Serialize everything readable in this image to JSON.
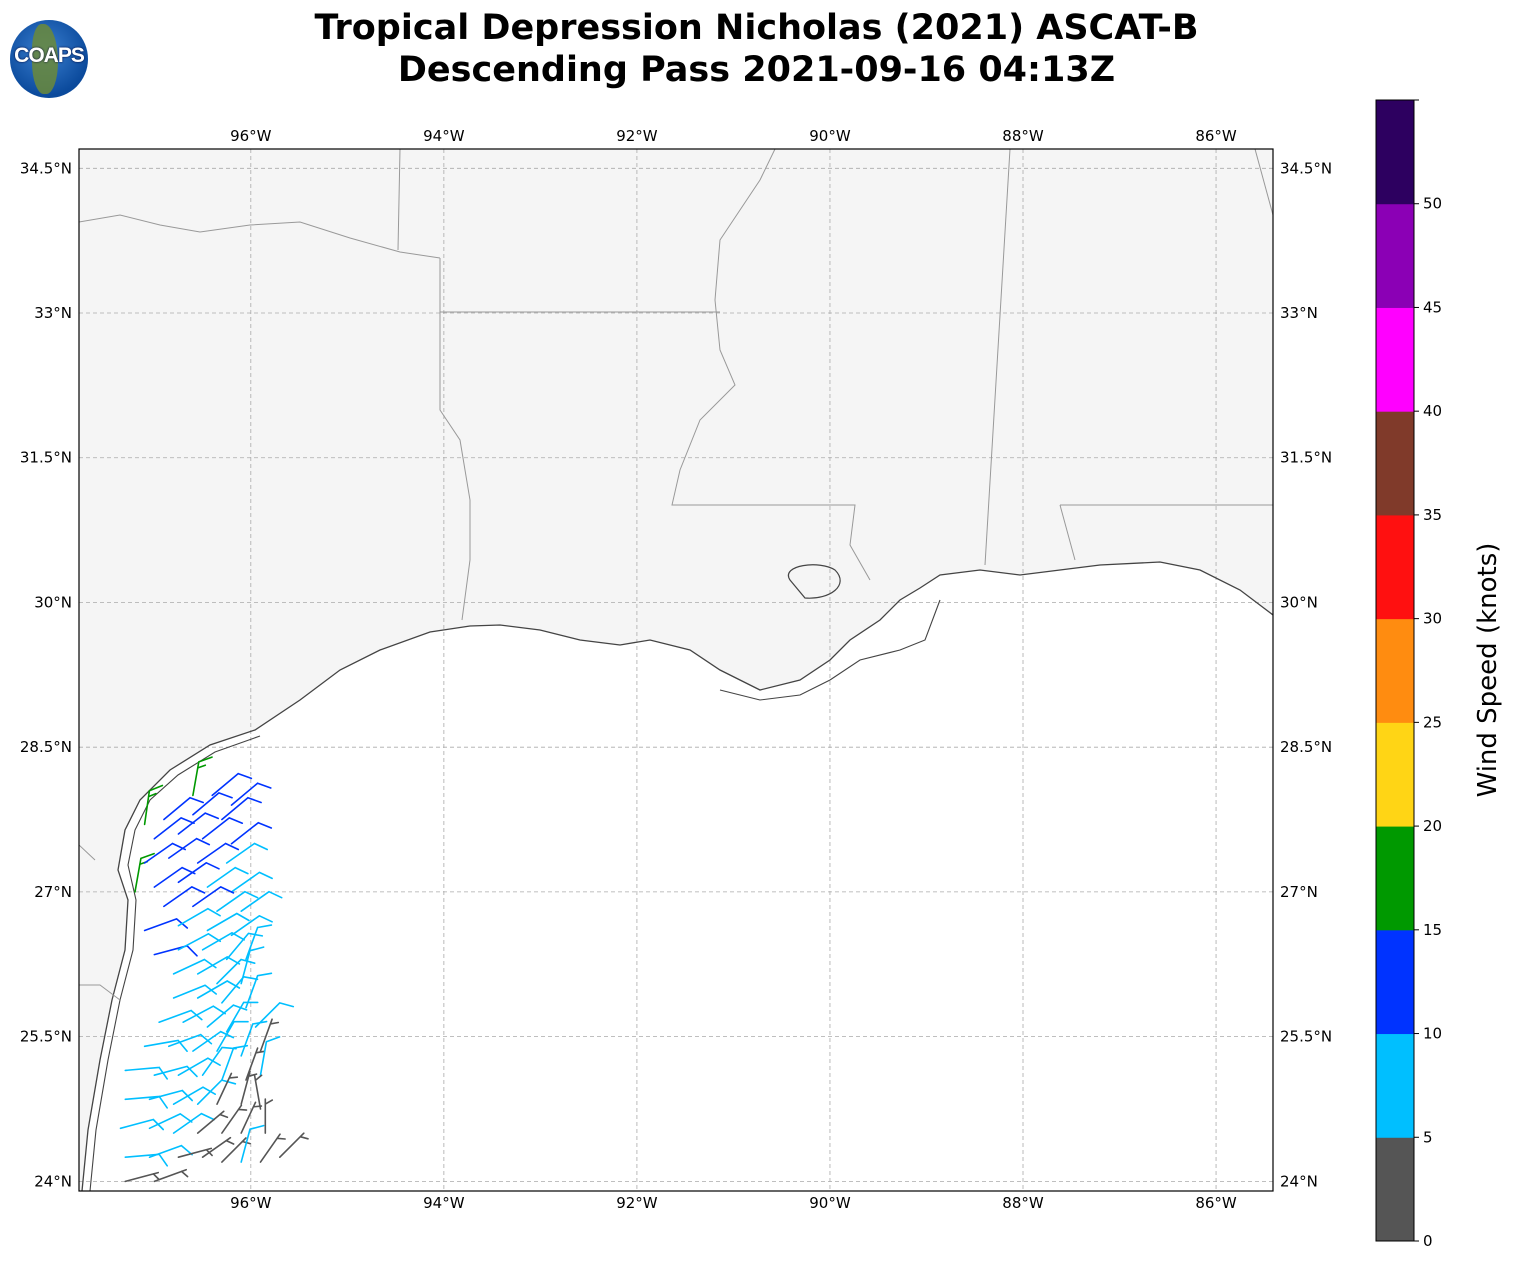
{
  "title": {
    "line1": "Tropical Depression Nicholas (2021) ASCAT-B",
    "line2": "Descending Pass 2021-09-16 04:13Z"
  },
  "logo_text": "COAPS",
  "map": {
    "lon_ticks": [
      {
        "value": -96,
        "label": "96°W"
      },
      {
        "value": -94,
        "label": "94°W"
      },
      {
        "value": -92,
        "label": "92°W"
      },
      {
        "value": -90,
        "label": "90°W"
      },
      {
        "value": -88,
        "label": "88°W"
      },
      {
        "value": -86,
        "label": "86°W"
      }
    ],
    "lat_ticks": [
      {
        "value": 34.5,
        "label": "34.5°N"
      },
      {
        "value": 33,
        "label": "33°N"
      },
      {
        "value": 31.5,
        "label": "31.5°N"
      },
      {
        "value": 30,
        "label": "30°N"
      },
      {
        "value": 28.5,
        "label": "28.5°N"
      },
      {
        "value": 27,
        "label": "27°N"
      },
      {
        "value": 25.5,
        "label": "25.5°N"
      },
      {
        "value": 24,
        "label": "24°N"
      }
    ],
    "extent": {
      "lon_min": -97.78,
      "lon_max": -85.41,
      "lat_min": 23.9,
      "lat_max": 34.7
    }
  },
  "colorbar": {
    "label": "Wind Speed (knots)",
    "bounds": [
      0,
      5,
      10,
      15,
      20,
      25,
      30,
      35,
      40,
      45,
      50,
      55
    ],
    "tick_labels": [
      "0",
      "5",
      "10",
      "15",
      "20",
      "25",
      "30",
      "35",
      "40",
      "45",
      "50"
    ],
    "colors": [
      "#555555",
      "#00bfff",
      "#0033ff",
      "#009900",
      "#ffd515",
      "#ff8c10",
      "#ff1010",
      "#803a2a",
      "#ff00ff",
      "#8b00b5",
      "#2d0060"
    ]
  },
  "wind_barbs_legend": "[lon, lat, speed_kt, staff_bearing_deg]",
  "wind_barbs": [
    [
      -96.6,
      28.0,
      16,
      10
    ],
    [
      -97.1,
      27.7,
      16,
      8
    ],
    [
      -97.2,
      27.0,
      16,
      10
    ],
    [
      -96.4,
      28.0,
      12,
      50
    ],
    [
      -96.2,
      27.9,
      12,
      50
    ],
    [
      -96.9,
      27.75,
      12,
      50
    ],
    [
      -96.6,
      27.8,
      12,
      50
    ],
    [
      -96.3,
      27.75,
      12,
      50
    ],
    [
      -97.0,
      27.55,
      12,
      52
    ],
    [
      -96.75,
      27.6,
      12,
      52
    ],
    [
      -96.5,
      27.55,
      12,
      52
    ],
    [
      -96.2,
      27.5,
      12,
      52
    ],
    [
      -97.1,
      27.3,
      12,
      55
    ],
    [
      -96.85,
      27.35,
      12,
      55
    ],
    [
      -96.55,
      27.3,
      12,
      55
    ],
    [
      -96.25,
      27.3,
      8,
      55
    ],
    [
      -97.0,
      27.05,
      12,
      55
    ],
    [
      -96.75,
      27.1,
      12,
      55
    ],
    [
      -96.45,
      27.05,
      8,
      55
    ],
    [
      -96.2,
      27.0,
      8,
      55
    ],
    [
      -96.9,
      26.85,
      12,
      55
    ],
    [
      -96.6,
      26.85,
      12,
      55
    ],
    [
      -96.35,
      26.8,
      8,
      55
    ],
    [
      -96.1,
      26.8,
      8,
      55
    ],
    [
      -97.1,
      26.6,
      12,
      70
    ],
    [
      -96.75,
      26.65,
      8,
      60
    ],
    [
      -96.45,
      26.6,
      8,
      60
    ],
    [
      -96.2,
      26.55,
      8,
      55
    ],
    [
      -97.0,
      26.35,
      12,
      75
    ],
    [
      -96.75,
      26.4,
      8,
      62
    ],
    [
      -96.5,
      26.4,
      8,
      60
    ],
    [
      -96.25,
      26.3,
      8,
      40
    ],
    [
      -96.05,
      26.3,
      8,
      20
    ],
    [
      -96.8,
      26.15,
      8,
      65
    ],
    [
      -96.55,
      26.15,
      8,
      60
    ],
    [
      -96.35,
      26.05,
      8,
      45
    ],
    [
      -96.1,
      26.05,
      8,
      15
    ],
    [
      -96.8,
      25.9,
      8,
      68
    ],
    [
      -96.55,
      25.9,
      8,
      60
    ],
    [
      -96.3,
      25.85,
      8,
      40
    ],
    [
      -96.05,
      25.8,
      8,
      20
    ],
    [
      -96.95,
      25.65,
      8,
      70
    ],
    [
      -96.7,
      25.65,
      8,
      62
    ],
    [
      -96.45,
      25.6,
      8,
      50
    ],
    [
      -96.25,
      25.55,
      8,
      30
    ],
    [
      -95.95,
      25.6,
      8,
      45
    ],
    [
      -97.1,
      25.4,
      8,
      80
    ],
    [
      -96.85,
      25.4,
      8,
      70
    ],
    [
      -96.6,
      25.35,
      8,
      55
    ],
    [
      -96.35,
      25.35,
      8,
      30
    ],
    [
      -96.1,
      25.3,
      8,
      20
    ],
    [
      -95.9,
      25.35,
      4,
      20
    ],
    [
      -97.3,
      25.15,
      8,
      85
    ],
    [
      -97.0,
      25.1,
      8,
      75
    ],
    [
      -96.75,
      25.1,
      8,
      60
    ],
    [
      -96.5,
      25.1,
      8,
      35
    ],
    [
      -96.3,
      25.05,
      8,
      20
    ],
    [
      -96.05,
      25.05,
      4,
      20
    ],
    [
      -95.9,
      25.1,
      8,
      10
    ],
    [
      -97.3,
      24.85,
      8,
      85
    ],
    [
      -97.05,
      24.85,
      8,
      75
    ],
    [
      -96.8,
      24.8,
      8,
      60
    ],
    [
      -96.55,
      24.8,
      8,
      45
    ],
    [
      -96.35,
      24.8,
      4,
      25
    ],
    [
      -96.1,
      24.8,
      4,
      15
    ],
    [
      -95.9,
      24.75,
      4,
      350
    ],
    [
      -97.35,
      24.55,
      8,
      75
    ],
    [
      -97.05,
      24.55,
      8,
      65
    ],
    [
      -96.8,
      24.5,
      8,
      55
    ],
    [
      -96.55,
      24.5,
      4,
      50
    ],
    [
      -96.3,
      24.5,
      4,
      35
    ],
    [
      -96.1,
      24.5,
      4,
      25
    ],
    [
      -95.85,
      24.5,
      4,
      0
    ],
    [
      -97.3,
      24.25,
      8,
      85
    ],
    [
      -97.05,
      24.25,
      8,
      70
    ],
    [
      -96.75,
      24.25,
      4,
      75
    ],
    [
      -96.5,
      24.25,
      4,
      55
    ],
    [
      -96.3,
      24.2,
      4,
      45
    ],
    [
      -96.1,
      24.2,
      8,
      15
    ],
    [
      -95.9,
      24.2,
      4,
      35
    ],
    [
      -95.7,
      24.25,
      4,
      45
    ],
    [
      -97.3,
      24.0,
      4,
      75
    ],
    [
      -97.0,
      24.0,
      4,
      70
    ]
  ]
}
